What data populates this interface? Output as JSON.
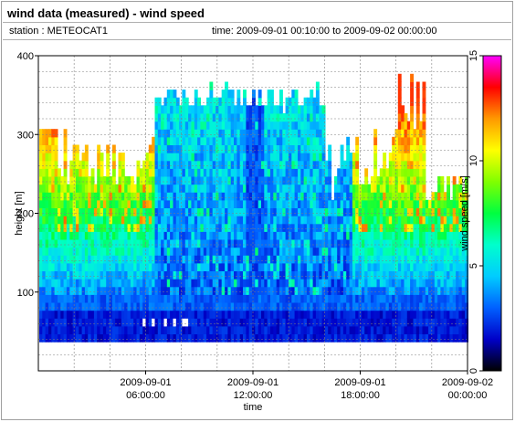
{
  "header": {
    "title": "wind data (measured) - wind speed",
    "station": "station : METEOCAT1",
    "timerange": "time: 2009-09-01 00:10:00 to 2009-09-02 00:00:00"
  },
  "chart_data": {
    "type": "heatmap",
    "title": "wind data (measured) - wind speed",
    "xlabel": "time",
    "ylabel": "height [m]",
    "colorbar_label": "wind speed [m/s]",
    "xlim": [
      0,
      24
    ],
    "ylim": [
      0,
      400
    ],
    "clim": [
      0,
      15
    ],
    "x_ticks": [
      {
        "value": 6,
        "line1": "2009-09-01",
        "line2": "06:00:00"
      },
      {
        "value": 12,
        "line1": "2009-09-01",
        "line2": "12:00:00"
      },
      {
        "value": 18,
        "line1": "2009-09-01",
        "line2": "18:00:00"
      },
      {
        "value": 24,
        "line1": "2009-09-02",
        "line2": "00:00:00"
      }
    ],
    "y_ticks": [
      100,
      200,
      300,
      400
    ],
    "c_ticks": [
      0,
      5,
      10,
      15
    ],
    "grid": true,
    "colormap": [
      "#000000",
      "#0000c8",
      "#0060ff",
      "#00ccff",
      "#00ffcc",
      "#00ff40",
      "#80ff00",
      "#ffff00",
      "#ff9900",
      "#ff0000",
      "#ff00ff"
    ],
    "data_note": "wind speed by height (about 40-360 m) over the day; slower near the ground (about 1-3 m/s), faster aloft (about 8-12 m/s) at night, weaker (about 3-6 m/s) around midday"
  }
}
